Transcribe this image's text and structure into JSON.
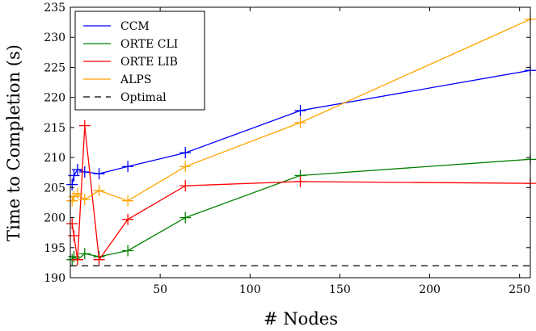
{
  "chart_data": {
    "type": "line",
    "title": "",
    "xlabel": "# Nodes",
    "ylabel": "Time to Completion (s)",
    "xlim": [
      0,
      256
    ],
    "ylim": [
      190,
      235
    ],
    "xticks": [
      50,
      100,
      150,
      200,
      250
    ],
    "yticks": [
      190,
      195,
      200,
      205,
      210,
      215,
      220,
      225,
      230,
      235
    ],
    "grid": false,
    "legend_position": "top-left",
    "series": [
      {
        "name": "CCM",
        "color": "#0000ff",
        "marker": "+",
        "dashed": false,
        "x": [
          1,
          2,
          4,
          8,
          16,
          32,
          64,
          128,
          256
        ],
        "y": [
          205.5,
          207.0,
          208.0,
          207.6,
          207.3,
          208.5,
          210.8,
          217.8,
          224.5
        ]
      },
      {
        "name": "ORTE CLI",
        "color": "#008000",
        "marker": "+",
        "dashed": false,
        "x": [
          1,
          2,
          4,
          8,
          16,
          32,
          64,
          128,
          256
        ],
        "y": [
          193.0,
          193.5,
          193.0,
          194.0,
          193.5,
          194.5,
          200.0,
          207.0,
          209.7
        ]
      },
      {
        "name": "ORTE LIB",
        "color": "#ff0000",
        "marker": "+",
        "dashed": false,
        "x": [
          1,
          2,
          4,
          8,
          16,
          32,
          64,
          128,
          256
        ],
        "y": [
          199.0,
          197.0,
          193.0,
          215.3,
          193.0,
          199.7,
          205.3,
          206.0,
          205.7
        ]
      },
      {
        "name": "ALPS",
        "color": "#ffa500",
        "marker": "+",
        "dashed": false,
        "x": [
          1,
          2,
          4,
          8,
          16,
          32,
          64,
          128,
          256
        ],
        "y": [
          202.8,
          203.5,
          204.0,
          203.0,
          204.5,
          202.8,
          208.5,
          215.8,
          233.0
        ]
      },
      {
        "name": "Optimal",
        "color": "#000000",
        "marker": "",
        "dashed": true,
        "x": [
          0,
          256
        ],
        "y": [
          192,
          192
        ]
      }
    ]
  }
}
